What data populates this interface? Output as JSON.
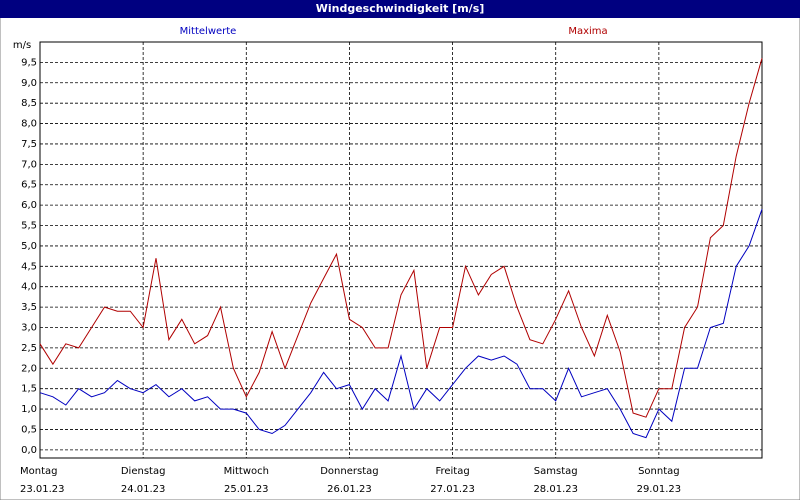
{
  "chart_data": {
    "type": "line",
    "title": "Windgeschwindigkeit [m/s]",
    "y_label": "m/s",
    "xlim": [
      0,
      168
    ],
    "ylim": [
      -0.2,
      10.0
    ],
    "grid": true,
    "xticks": [
      {
        "value": 0,
        "label": "Montag",
        "sublabel": "23.01.23"
      },
      {
        "value": 24,
        "label": "Dienstag",
        "sublabel": "24.01.23"
      },
      {
        "value": 48,
        "label": "Mittwoch",
        "sublabel": "25.01.23"
      },
      {
        "value": 72,
        "label": "Donnerstag",
        "sublabel": "26.01.23"
      },
      {
        "value": 96,
        "label": "Freitag",
        "sublabel": "27.01.23"
      },
      {
        "value": 120,
        "label": "Samstag",
        "sublabel": "28.01.23"
      },
      {
        "value": 144,
        "label": "Sonntag",
        "sublabel": "29.01.23"
      }
    ],
    "yticks": [
      {
        "value": 0,
        "label": "0,0"
      },
      {
        "value": 0.5,
        "label": "0,5"
      },
      {
        "value": 1,
        "label": "1,0"
      },
      {
        "value": 1.5,
        "label": "1,5"
      },
      {
        "value": 2,
        "label": "2,0"
      },
      {
        "value": 2.5,
        "label": "2,5"
      },
      {
        "value": 3,
        "label": "3,0"
      },
      {
        "value": 3.5,
        "label": "3,5"
      },
      {
        "value": 4,
        "label": "4,0"
      },
      {
        "value": 4.5,
        "label": "4,5"
      },
      {
        "value": 5,
        "label": "5,0"
      },
      {
        "value": 5.5,
        "label": "5,5"
      },
      {
        "value": 6,
        "label": "6,0"
      },
      {
        "value": 6.5,
        "label": "6,5"
      },
      {
        "value": 7,
        "label": "7,0"
      },
      {
        "value": 7.5,
        "label": "7,5"
      },
      {
        "value": 8,
        "label": "8,0"
      },
      {
        "value": 8.5,
        "label": "8,5"
      },
      {
        "value": 9,
        "label": "9,0"
      },
      {
        "value": 9.5,
        "label": "9,5"
      }
    ],
    "x": [
      0,
      3,
      6,
      9,
      12,
      15,
      18,
      21,
      24,
      27,
      30,
      33,
      36,
      39,
      42,
      45,
      48,
      51,
      54,
      57,
      60,
      63,
      66,
      69,
      72,
      75,
      78,
      81,
      84,
      87,
      90,
      93,
      96,
      99,
      102,
      105,
      108,
      111,
      114,
      117,
      120,
      123,
      126,
      129,
      132,
      135,
      138,
      141,
      144,
      147,
      150,
      153,
      156,
      159,
      162,
      165,
      168
    ],
    "series": [
      {
        "name": "Mittelwerte",
        "color": "#0000c0",
        "values": [
          1.4,
          1.3,
          1.1,
          1.5,
          1.3,
          1.4,
          1.7,
          1.5,
          1.4,
          1.6,
          1.3,
          1.5,
          1.2,
          1.3,
          1.0,
          1.0,
          0.9,
          0.5,
          0.4,
          0.6,
          1.0,
          1.4,
          1.9,
          1.5,
          1.6,
          1.0,
          1.5,
          1.2,
          2.3,
          1.0,
          1.5,
          1.2,
          1.6,
          2.0,
          2.3,
          2.2,
          2.3,
          2.1,
          1.5,
          1.5,
          1.2,
          2.0,
          1.3,
          1.4,
          1.5,
          1.0,
          0.4,
          0.3,
          1.0,
          0.7,
          2.0,
          2.0,
          3.0,
          3.1,
          4.5,
          5.0,
          5.9
        ]
      },
      {
        "name": "Maxima",
        "color": "#b00000",
        "values": [
          2.6,
          2.1,
          2.6,
          2.5,
          3.0,
          3.5,
          3.4,
          3.4,
          3.0,
          4.7,
          2.7,
          3.2,
          2.6,
          2.8,
          3.5,
          2.0,
          1.3,
          1.9,
          2.9,
          2.0,
          2.8,
          3.6,
          4.2,
          4.8,
          3.2,
          3.0,
          2.5,
          2.5,
          3.8,
          4.4,
          2.0,
          3.0,
          3.0,
          4.5,
          3.8,
          4.3,
          4.5,
          3.5,
          2.7,
          2.6,
          3.2,
          3.9,
          3.0,
          2.3,
          3.3,
          2.4,
          0.9,
          0.8,
          1.5,
          1.5,
          3.0,
          3.5,
          5.2,
          5.5,
          7.2,
          8.5,
          9.6
        ]
      }
    ]
  }
}
